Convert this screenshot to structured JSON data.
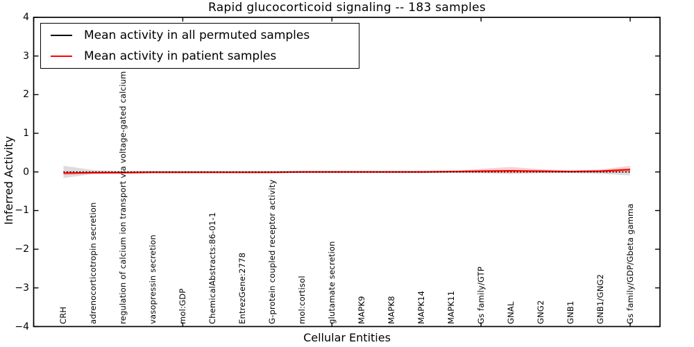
{
  "figure": {
    "title": "Rapid glucocorticoid signaling -- 183 samples",
    "xlabel": "Cellular Entities",
    "ylabel": "Inferred Activity"
  },
  "legend": {
    "position": "upper left",
    "entries": [
      {
        "label": "Mean activity in all permuted samples",
        "color": "#000000",
        "line_style": "solid"
      },
      {
        "label": "Mean activity in patient samples",
        "color": "#ff0000",
        "line_style": "solid"
      }
    ]
  },
  "colors": {
    "frame": "#000000",
    "background": "#ffffff",
    "permuted_line": "#000000",
    "patient_line": "#ff0000",
    "permuted_band": "#d4d4d4",
    "patient_band": "#ff0000"
  },
  "chart_data": {
    "type": "line",
    "title": "Rapid glucocorticoid signaling -- 183 samples",
    "xlabel": "Cellular Entities",
    "ylabel": "Inferred Activity",
    "ylim": [
      -4,
      4
    ],
    "xlim": [
      0,
      21
    ],
    "y_ticks": [
      -4,
      -3,
      -2,
      -1,
      0,
      1,
      2,
      3,
      4
    ],
    "x_ticks": [
      0,
      5,
      10,
      15,
      20
    ],
    "grid": false,
    "legend_position": "upper left",
    "categories": [
      "CRH",
      "adrenocorticotropin secretion",
      "regulation of calcium ion transport via voltage-gated calcium channel",
      "vasopressin secretion",
      "mol:GDP",
      "ChemicalAbstracts:86-01-1",
      "EntrezGene:2778",
      "G-protein coupled receptor activity",
      "mol:cortisol",
      "glutamate secretion",
      "MAPK9",
      "MAPK8",
      "MAPK14",
      "MAPK11",
      "Gs family/GTP",
      "GNAL",
      "GNG2",
      "GNB1",
      "GNB1/GNG2",
      "Gs family/GDP/Gbeta gamma"
    ],
    "x": [
      1,
      2,
      3,
      4,
      5,
      6,
      7,
      8,
      9,
      10,
      11,
      12,
      13,
      14,
      15,
      16,
      17,
      18,
      19,
      20
    ],
    "series": [
      {
        "name": "Mean activity in all permuted samples",
        "color": "#000000",
        "render_style": "dotted-over-patient-line",
        "values": [
          0,
          0,
          0,
          0,
          0,
          0,
          0,
          0,
          0,
          0,
          0,
          0,
          0,
          0,
          0,
          0,
          0,
          0,
          0,
          0
        ]
      },
      {
        "name": "Mean activity in patient samples",
        "color": "#ff0000",
        "render_style": "solid",
        "values": [
          -0.03,
          -0.02,
          -0.02,
          -0.01,
          -0.01,
          -0.01,
          -0.01,
          -0.01,
          0,
          0,
          0,
          0,
          0,
          0.01,
          0.02,
          0.03,
          0.02,
          0.01,
          0.02,
          0.06
        ]
      }
    ],
    "bands": [
      {
        "name": "permuted samples range",
        "color": "#d4d4d4",
        "opacity": 0.8,
        "upper": [
          0.16,
          0.05,
          0.03,
          0.03,
          0.025,
          0.025,
          0.025,
          0.025,
          0.025,
          0.025,
          0.025,
          0.025,
          0.025,
          0.025,
          0.03,
          0.03,
          0.03,
          0.03,
          0.05,
          0.09
        ],
        "lower": [
          -0.16,
          -0.05,
          -0.03,
          -0.03,
          -0.025,
          -0.025,
          -0.025,
          -0.025,
          -0.025,
          -0.025,
          -0.025,
          -0.025,
          -0.025,
          -0.025,
          -0.03,
          -0.03,
          -0.03,
          -0.03,
          -0.05,
          -0.09
        ]
      },
      {
        "name": "patient samples range",
        "color": "#ff0000",
        "opacity": 0.18,
        "upper": [
          0.02,
          0.01,
          0.01,
          0.01,
          0.01,
          0.01,
          0.01,
          0.01,
          0.01,
          0.01,
          0.01,
          0.01,
          0.01,
          0.02,
          0.08,
          0.13,
          0.07,
          0.04,
          0.06,
          0.16
        ],
        "lower": [
          -0.08,
          -0.05,
          -0.04,
          -0.03,
          -0.02,
          -0.02,
          -0.02,
          -0.02,
          -0.02,
          -0.02,
          -0.02,
          -0.02,
          -0.02,
          -0.02,
          -0.03,
          -0.05,
          -0.03,
          -0.02,
          -0.02,
          -0.02
        ]
      }
    ]
  }
}
